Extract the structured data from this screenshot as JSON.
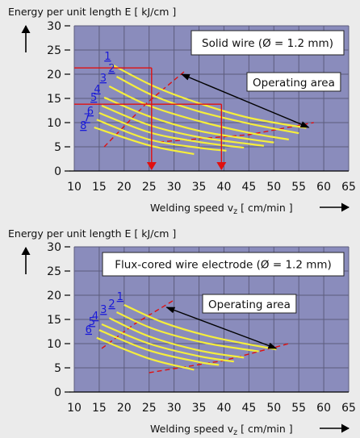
{
  "chart_data": [
    {
      "type": "line",
      "ylabel": "Energy per unit length E [ kJ/cm ]",
      "xlabel_main": "Welding speed v",
      "xlabel_sub": "z",
      "xlabel_unit": " [ cm/min ]",
      "xlim": [
        10,
        65
      ],
      "ylim": [
        0,
        30
      ],
      "xticks": [
        10,
        15,
        20,
        25,
        30,
        35,
        40,
        45,
        50,
        55,
        60,
        65
      ],
      "yticks": [
        0,
        5,
        10,
        15,
        20,
        25,
        30
      ],
      "grid": true,
      "annotation_box": "Solid wire (Ø = 1.2 mm)",
      "operating_area_label": "Operating area",
      "colors": {
        "plot_bg": "#8a8cbc",
        "curve": "#f5ee3c",
        "guide": "#e01010",
        "grid": "#5c5c7c"
      },
      "series": [
        {
          "label": "1",
          "x": [
            17.5,
            26,
            35,
            45,
            56.5
          ],
          "y": [
            22,
            17.5,
            14,
            11,
            8.9
          ]
        },
        {
          "label": "2",
          "x": [
            18.5,
            26,
            35,
            45,
            55
          ],
          "y": [
            19.5,
            15.5,
            12.3,
            9.8,
            7.8
          ]
        },
        {
          "label": "3",
          "x": [
            17,
            25,
            35,
            45,
            53
          ],
          "y": [
            17.5,
            13.5,
            10.3,
            7.9,
            6.5
          ]
        },
        {
          "label": "4",
          "x": [
            16,
            25,
            35,
            45,
            50
          ],
          "y": [
            15.2,
            11.3,
            8.3,
            6.6,
            5.9
          ]
        },
        {
          "label": "5",
          "x": [
            15.5,
            25,
            35,
            45,
            48
          ],
          "y": [
            13.5,
            9.5,
            7.0,
            5.6,
            5.2
          ]
        },
        {
          "label": "6",
          "x": [
            15,
            25,
            35,
            44
          ],
          "y": [
            12,
            8.0,
            6.0,
            4.8
          ]
        },
        {
          "label": "7",
          "x": [
            14.5,
            25,
            35,
            40.5
          ],
          "y": [
            10.6,
            6.5,
            4.8,
            4.2
          ]
        },
        {
          "label": "8",
          "x": [
            14,
            25,
            34
          ],
          "y": [
            9,
            5.3,
            3.5
          ]
        }
      ],
      "operating_area_boundary": [
        {
          "x": [
            16,
            24.5,
            32
          ],
          "y": [
            5,
            14,
            20.5
          ]
        },
        {
          "x": [
            27,
            45,
            58
          ],
          "y": [
            6,
            7.5,
            10
          ]
        }
      ],
      "reference_lines": [
        {
          "level_y": 21.3,
          "speed_x": 25.5
        },
        {
          "level_y": 13.8,
          "speed_x": 39.5
        }
      ],
      "arrow": {
        "from": [
          31.5,
          20
        ],
        "to": [
          57,
          9
        ]
      }
    },
    {
      "type": "line",
      "ylabel": "Energy per unit length E [ kJ/cm ]",
      "xlabel_main": "Welding speed v",
      "xlabel_sub": "z",
      "xlabel_unit": " [ cm/min ]",
      "xlim": [
        10,
        65
      ],
      "ylim": [
        0,
        30
      ],
      "xticks": [
        10,
        15,
        20,
        25,
        30,
        35,
        40,
        45,
        50,
        55,
        60,
        65
      ],
      "yticks": [
        0,
        5,
        10,
        15,
        20,
        25,
        30
      ],
      "grid": true,
      "annotation_box": "Flux-cored wire electrode (Ø = 1.2 mm)",
      "operating_area_label": "Operating area",
      "colors": {
        "plot_bg": "#8a8cbc",
        "curve": "#f5ee3c",
        "guide": "#e01010",
        "grid": "#5c5c7c"
      },
      "series": [
        {
          "label": "1",
          "x": [
            20,
            28,
            38,
            50.5
          ],
          "y": [
            18,
            14.3,
            11.3,
            8.8
          ]
        },
        {
          "label": "2",
          "x": [
            18.5,
            26,
            36,
            47
          ],
          "y": [
            16.5,
            13.0,
            10.2,
            8.4
          ]
        },
        {
          "label": "3",
          "x": [
            17,
            25,
            35,
            44
          ],
          "y": [
            15.3,
            11.5,
            8.6,
            7.1
          ]
        },
        {
          "label": "4",
          "x": [
            15.5,
            25,
            35,
            42
          ],
          "y": [
            14,
            10.0,
            7.4,
            6.3
          ]
        },
        {
          "label": "5",
          "x": [
            15,
            25,
            35,
            39
          ],
          "y": [
            12.8,
            8.6,
            6.2,
            5.6
          ]
        },
        {
          "label": "6",
          "x": [
            14.5,
            25,
            34
          ],
          "y": [
            11.2,
            6.9,
            4.6
          ]
        }
      ],
      "operating_area_boundary": [
        {
          "x": [
            15.5,
            22,
            30
          ],
          "y": [
            9,
            14,
            19
          ]
        },
        {
          "x": [
            25,
            40,
            53
          ],
          "y": [
            4,
            6.5,
            10
          ]
        }
      ],
      "reference_lines": [],
      "arrow": {
        "from": [
          28.5,
          17.5
        ],
        "to": [
          50.5,
          9
        ]
      }
    }
  ]
}
